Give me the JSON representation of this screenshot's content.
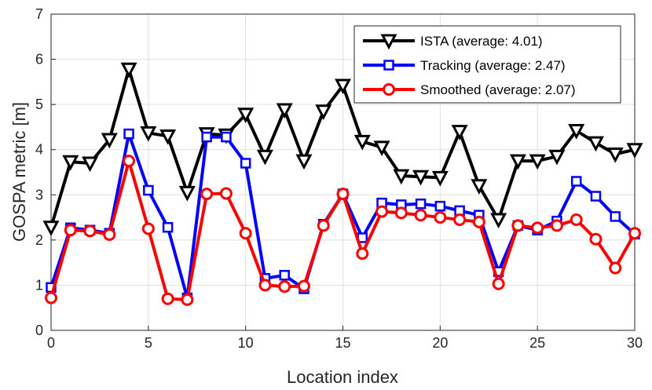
{
  "chart_data": {
    "type": "line",
    "title": "",
    "xlabel": "Location index",
    "ylabel": "GOSPA metric [m]",
    "xlim": [
      0,
      30
    ],
    "ylim": [
      0,
      7
    ],
    "xticks": [
      0,
      5,
      10,
      15,
      20,
      25,
      30
    ],
    "yticks": [
      0,
      1,
      2,
      3,
      4,
      5,
      6,
      7
    ],
    "grid": true,
    "legend_position": "top-right",
    "x": [
      0,
      1,
      2,
      3,
      4,
      5,
      6,
      7,
      8,
      9,
      10,
      11,
      12,
      13,
      14,
      15,
      16,
      17,
      18,
      19,
      20,
      21,
      22,
      23,
      24,
      25,
      26,
      27,
      28,
      29,
      30
    ],
    "series": [
      {
        "name": "ISTA (average: 4.01)",
        "color": "#000000",
        "marker": "triangle-down",
        "values": [
          2.28,
          3.73,
          3.7,
          4.22,
          5.78,
          4.37,
          4.3,
          3.05,
          4.35,
          4.32,
          4.78,
          3.85,
          4.88,
          3.75,
          4.85,
          5.42,
          4.18,
          4.05,
          3.42,
          3.4,
          3.38,
          4.4,
          3.2,
          2.45,
          3.75,
          3.75,
          3.85,
          4.42,
          4.15,
          3.9,
          4.0
        ]
      },
      {
        "name": "Tracking (average: 2.47)",
        "color": "#0000ff",
        "marker": "square",
        "values": [
          0.95,
          2.27,
          2.22,
          2.15,
          4.35,
          3.1,
          2.28,
          0.72,
          4.28,
          4.28,
          3.7,
          1.15,
          1.22,
          0.92,
          2.35,
          3.02,
          2.05,
          2.82,
          2.78,
          2.8,
          2.75,
          2.65,
          2.55,
          1.3,
          2.32,
          2.22,
          2.42,
          3.3,
          2.97,
          2.52,
          2.13
        ]
      },
      {
        "name": "Smoothed (average: 2.07)",
        "color": "#ff0000",
        "marker": "circle",
        "values": [
          0.72,
          2.22,
          2.2,
          2.12,
          3.75,
          2.25,
          0.7,
          0.68,
          3.02,
          3.03,
          2.15,
          1.0,
          0.97,
          0.98,
          2.32,
          3.02,
          1.7,
          2.63,
          2.6,
          2.55,
          2.5,
          2.45,
          2.4,
          1.03,
          2.32,
          2.27,
          2.32,
          2.45,
          2.02,
          1.38,
          2.15
        ]
      }
    ]
  }
}
